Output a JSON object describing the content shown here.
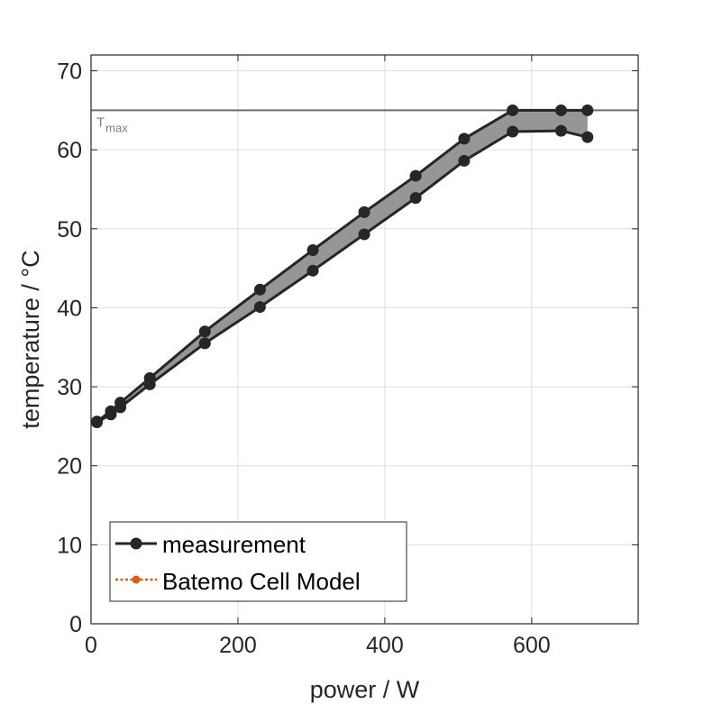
{
  "chart_data": {
    "type": "line",
    "title": "",
    "xlabel": "power / W",
    "ylabel": "temperature / °C",
    "xlim": [
      0,
      745
    ],
    "ylim": [
      0,
      72
    ],
    "xticks": [
      0,
      200,
      400,
      600
    ],
    "yticks": [
      0,
      10,
      20,
      30,
      40,
      50,
      60,
      70
    ],
    "xtick_labels": [
      "0",
      "200",
      "400",
      "600"
    ],
    "ytick_labels": [
      "0",
      "10",
      "20",
      "30",
      "40",
      "50",
      "60",
      "70"
    ],
    "grid": true,
    "reference_line": {
      "name": "T_max",
      "label_main": "T",
      "label_sub": "max",
      "y": 65,
      "color": "#6e6e6e"
    },
    "band_fill_color": "#969696",
    "series": [
      {
        "name": "measurement upper",
        "color": "#262626",
        "x": [
          8,
          27,
          40,
          80,
          155,
          230,
          302,
          372,
          442,
          508,
          574,
          640,
          676
        ],
        "y": [
          25.6,
          26.9,
          28.0,
          31.1,
          37.0,
          42.3,
          47.3,
          52.1,
          56.7,
          61.4,
          65.0,
          65.0,
          65.0
        ]
      },
      {
        "name": "measurement lower",
        "color": "#262626",
        "x": [
          8,
          27,
          40,
          80,
          155,
          230,
          302,
          372,
          442,
          508,
          574,
          640,
          676
        ],
        "y": [
          25.5,
          26.5,
          27.4,
          30.3,
          35.5,
          40.1,
          44.7,
          49.3,
          53.9,
          58.6,
          62.3,
          62.4,
          61.6
        ]
      }
    ],
    "legend": {
      "placement": "bottom-left",
      "entries": [
        {
          "label": "measurement",
          "color": "#262626",
          "style": "solid"
        },
        {
          "label": "Batemo Cell Model",
          "color": "#e05a14",
          "style": "dotted"
        }
      ]
    }
  }
}
